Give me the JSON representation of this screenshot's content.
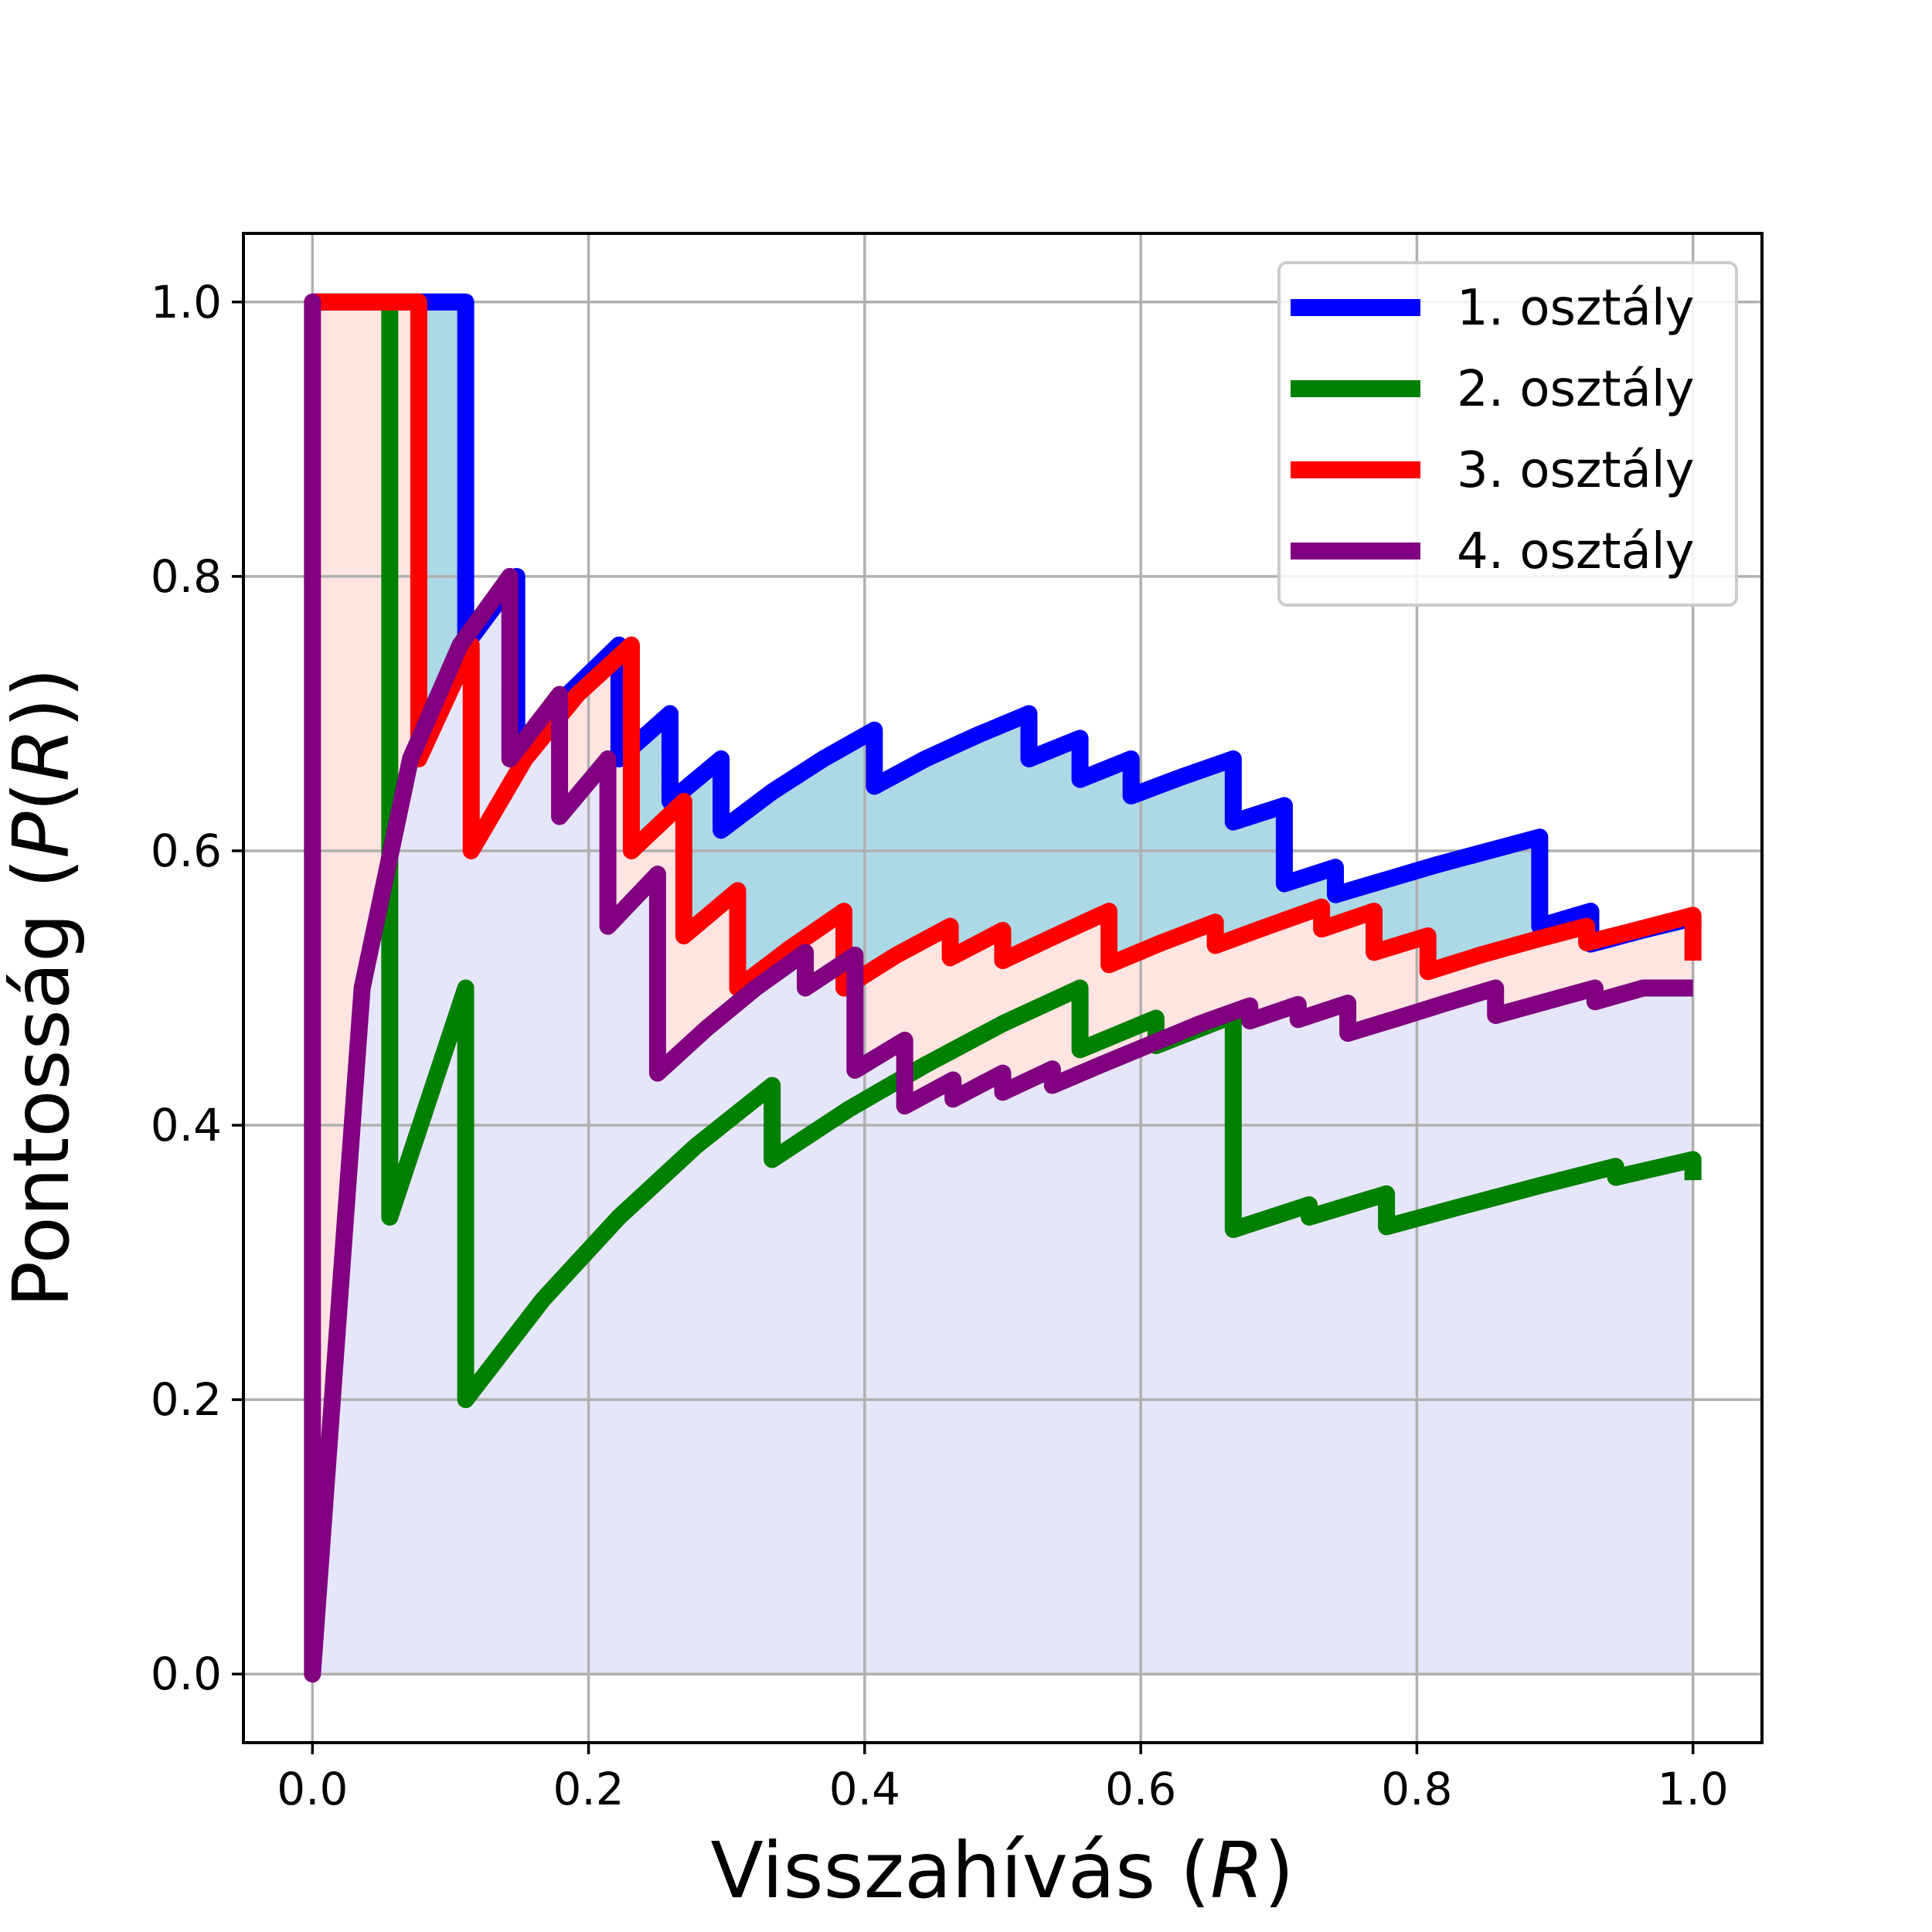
{
  "chart_data": {
    "type": "line",
    "xlabel": "Visszahívás (R)",
    "xlabel_parts": {
      "prefix": "Visszahívás (",
      "var": "R",
      "suffix": ")"
    },
    "ylabel": "Pontosság (P(R))",
    "ylabel_parts": {
      "prefix": "Pontosság (",
      "var1": "P",
      "mid": "(",
      "var2": "R",
      "suffix": "))"
    },
    "xlim": [
      -0.05,
      1.05
    ],
    "ylim": [
      -0.05,
      1.05
    ],
    "xticks": [
      "0.0",
      "0.2",
      "0.4",
      "0.6",
      "0.8",
      "1.0"
    ],
    "yticks": [
      "0.0",
      "0.2",
      "0.4",
      "0.6",
      "0.8",
      "1.0"
    ],
    "grid": true,
    "legend_position": "top-right",
    "series": [
      {
        "name": "1. osztály",
        "color": "#0000ff",
        "fill": "#add8e6",
        "points": [
          [
            0,
            1
          ],
          [
            0.111,
            1
          ],
          [
            0.111,
            0.75
          ],
          [
            0.148,
            0.8
          ],
          [
            0.148,
            0.667
          ],
          [
            0.185,
            0.714
          ],
          [
            0.222,
            0.75
          ],
          [
            0.222,
            0.667
          ],
          [
            0.259,
            0.7
          ],
          [
            0.259,
            0.636
          ],
          [
            0.296,
            0.667
          ],
          [
            0.296,
            0.615
          ],
          [
            0.333,
            0.643
          ],
          [
            0.37,
            0.667
          ],
          [
            0.407,
            0.688
          ],
          [
            0.407,
            0.647
          ],
          [
            0.444,
            0.667
          ],
          [
            0.481,
            0.684
          ],
          [
            0.519,
            0.7
          ],
          [
            0.519,
            0.667
          ],
          [
            0.556,
            0.682
          ],
          [
            0.556,
            0.652
          ],
          [
            0.593,
            0.667
          ],
          [
            0.593,
            0.64
          ],
          [
            0.63,
            0.654
          ],
          [
            0.667,
            0.667
          ],
          [
            0.667,
            0.621
          ],
          [
            0.704,
            0.633
          ],
          [
            0.704,
            0.576
          ],
          [
            0.741,
            0.588
          ],
          [
            0.741,
            0.568
          ],
          [
            0.778,
            0.579
          ],
          [
            0.815,
            0.59
          ],
          [
            0.852,
            0.6
          ],
          [
            0.889,
            0.61
          ],
          [
            0.889,
            0.545
          ],
          [
            0.926,
            0.556
          ],
          [
            0.926,
            0.532
          ],
          [
            0.963,
            0.542
          ],
          [
            1.0,
            0.551
          ],
          [
            1.0,
            0.545
          ]
        ]
      },
      {
        "name": "2. osztály",
        "color": "#008000",
        "fill": "#e6e6fa",
        "points": [
          [
            0.056,
            1
          ],
          [
            0.056,
            0.333
          ],
          [
            0.111,
            0.5
          ],
          [
            0.111,
            0.2
          ],
          [
            0.167,
            0.273
          ],
          [
            0.222,
            0.333
          ],
          [
            0.278,
            0.385
          ],
          [
            0.333,
            0.429
          ],
          [
            0.333,
            0.375
          ],
          [
            0.389,
            0.412
          ],
          [
            0.444,
            0.444
          ],
          [
            0.5,
            0.474
          ],
          [
            0.556,
            0.5
          ],
          [
            0.556,
            0.455
          ],
          [
            0.611,
            0.478
          ],
          [
            0.611,
            0.458
          ],
          [
            0.667,
            0.48
          ],
          [
            0.667,
            0.324
          ],
          [
            0.722,
            0.342
          ],
          [
            0.722,
            0.333
          ],
          [
            0.778,
            0.35
          ],
          [
            0.778,
            0.326
          ],
          [
            0.833,
            0.341
          ],
          [
            0.889,
            0.356
          ],
          [
            0.944,
            0.37
          ],
          [
            0.944,
            0.362
          ],
          [
            1.0,
            0.375
          ],
          [
            1.0,
            0.36
          ]
        ]
      },
      {
        "name": "3. osztály",
        "color": "#ff0000",
        "fill": "#ffe4e1",
        "points": [
          [
            0,
            1
          ],
          [
            0.077,
            1
          ],
          [
            0.077,
            0.667
          ],
          [
            0.115,
            0.75
          ],
          [
            0.115,
            0.6
          ],
          [
            0.154,
            0.667
          ],
          [
            0.192,
            0.714
          ],
          [
            0.231,
            0.75
          ],
          [
            0.231,
            0.6
          ],
          [
            0.269,
            0.636
          ],
          [
            0.269,
            0.538
          ],
          [
            0.308,
            0.571
          ],
          [
            0.308,
            0.5
          ],
          [
            0.346,
            0.529
          ],
          [
            0.385,
            0.556
          ],
          [
            0.385,
            0.5
          ],
          [
            0.423,
            0.524
          ],
          [
            0.462,
            0.545
          ],
          [
            0.462,
            0.522
          ],
          [
            0.5,
            0.542
          ],
          [
            0.5,
            0.52
          ],
          [
            0.538,
            0.538
          ],
          [
            0.577,
            0.556
          ],
          [
            0.577,
            0.517
          ],
          [
            0.615,
            0.533
          ],
          [
            0.654,
            0.548
          ],
          [
            0.654,
            0.531
          ],
          [
            0.692,
            0.545
          ],
          [
            0.731,
            0.559
          ],
          [
            0.731,
            0.543
          ],
          [
            0.769,
            0.556
          ],
          [
            0.769,
            0.526
          ],
          [
            0.808,
            0.538
          ],
          [
            0.808,
            0.512
          ],
          [
            0.846,
            0.524
          ],
          [
            0.885,
            0.535
          ],
          [
            0.923,
            0.545
          ],
          [
            0.923,
            0.533
          ],
          [
            0.962,
            0.543
          ],
          [
            1.0,
            0.553
          ],
          [
            1.0,
            0.52
          ]
        ]
      },
      {
        "name": "4. osztály",
        "color": "#800080",
        "fill": "#e6e6fa",
        "points": [
          [
            0,
            0
          ],
          [
            0,
            1
          ],
          [
            0,
            0
          ],
          [
            0.036,
            0.5
          ],
          [
            0.071,
            0.667
          ],
          [
            0.107,
            0.75
          ],
          [
            0.143,
            0.8
          ],
          [
            0.143,
            0.667
          ],
          [
            0.179,
            0.714
          ],
          [
            0.179,
            0.625
          ],
          [
            0.214,
            0.667
          ],
          [
            0.214,
            0.545
          ],
          [
            0.25,
            0.583
          ],
          [
            0.25,
            0.438
          ],
          [
            0.286,
            0.471
          ],
          [
            0.321,
            0.5
          ],
          [
            0.357,
            0.526
          ],
          [
            0.357,
            0.5
          ],
          [
            0.393,
            0.524
          ],
          [
            0.393,
            0.44
          ],
          [
            0.429,
            0.462
          ],
          [
            0.429,
            0.414
          ],
          [
            0.464,
            0.433
          ],
          [
            0.464,
            0.419
          ],
          [
            0.5,
            0.438
          ],
          [
            0.5,
            0.424
          ],
          [
            0.536,
            0.441
          ],
          [
            0.536,
            0.429
          ],
          [
            0.571,
            0.444
          ],
          [
            0.607,
            0.459
          ],
          [
            0.643,
            0.474
          ],
          [
            0.679,
            0.487
          ],
          [
            0.679,
            0.476
          ],
          [
            0.714,
            0.488
          ],
          [
            0.714,
            0.477
          ],
          [
            0.75,
            0.489
          ],
          [
            0.75,
            0.467
          ],
          [
            0.786,
            0.478
          ],
          [
            0.821,
            0.489
          ],
          [
            0.857,
            0.5
          ],
          [
            0.857,
            0.48
          ],
          [
            0.893,
            0.49
          ],
          [
            0.929,
            0.5
          ],
          [
            0.929,
            0.49
          ],
          [
            0.964,
            0.5
          ],
          [
            1.0,
            0.5
          ]
        ]
      }
    ]
  }
}
